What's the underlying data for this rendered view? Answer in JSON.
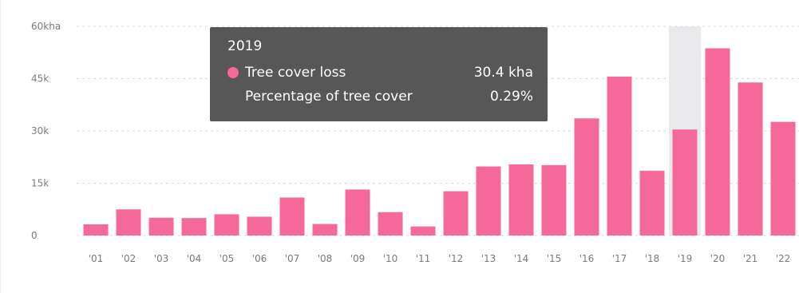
{
  "colors": {
    "bar": "#f5689a",
    "highlight": "#e9e9ec",
    "grid": "#d8d8d8",
    "tick": "#7a7a7a",
    "tooltip_bg": "#575757"
  },
  "tooltip": {
    "year": "2019",
    "series_label": "Tree cover loss",
    "series_value": "30.4 kha",
    "pct_label": "Percentage of tree cover",
    "pct_value": "0.29%"
  },
  "chart_data": {
    "type": "bar",
    "categories": [
      "'01",
      "'02",
      "'03",
      "'04",
      "'05",
      "'06",
      "'07",
      "'08",
      "'09",
      "'10",
      "'11",
      "'12",
      "'13",
      "'14",
      "'15",
      "'16",
      "'17",
      "'18",
      "'19",
      "'20",
      "'21",
      "'22"
    ],
    "values": [
      3.2,
      7.5,
      5.1,
      5.0,
      6.1,
      5.4,
      10.9,
      3.3,
      13.2,
      6.7,
      2.6,
      12.7,
      19.8,
      20.4,
      20.2,
      33.6,
      45.6,
      18.6,
      30.4,
      53.7,
      43.9,
      32.6
    ],
    "y_tick_labels": [
      "0",
      "15k",
      "30k",
      "45k",
      "60kha"
    ],
    "y_tick_values": [
      0,
      15,
      30,
      45,
      60
    ],
    "ylim": [
      0,
      60
    ],
    "highlighted_category": "'19",
    "grid": true
  }
}
